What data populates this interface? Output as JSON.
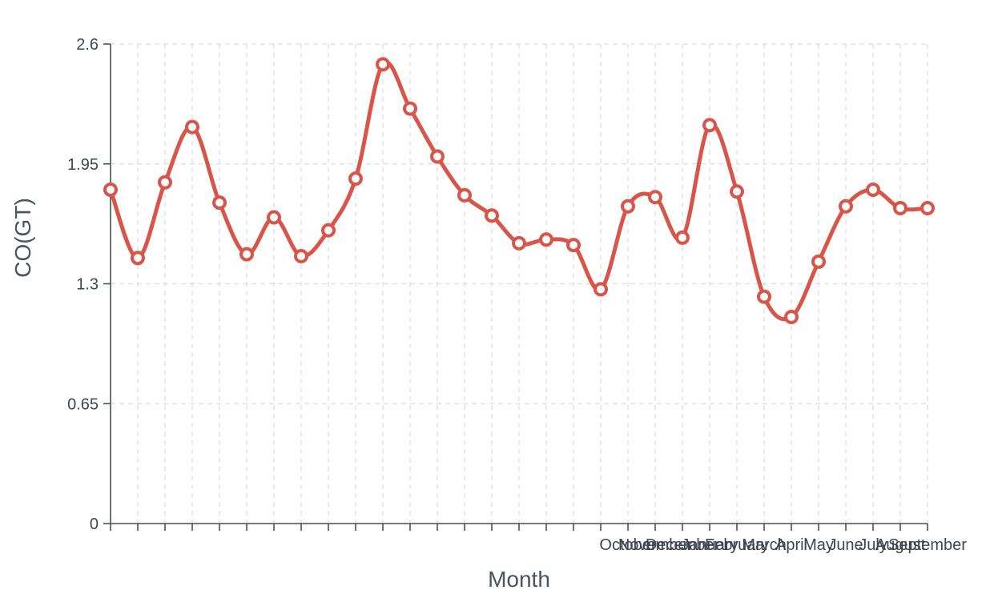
{
  "chart_data": {
    "type": "line",
    "title": "",
    "xlabel": "Month",
    "ylabel": "CO(GT)",
    "ylim": [
      0,
      2.6
    ],
    "yticks": [
      "0",
      "0.65",
      "1.3",
      "1.95",
      "2.6"
    ],
    "grid": true,
    "smooth": true,
    "colors": {
      "series": "#d9554a",
      "axis": "#4a4f5a",
      "grid": "#dddddd",
      "text": "#3f4550"
    },
    "x_tick_labels": [
      "",
      "",
      "",
      "",
      "",
      "",
      "",
      "",
      "",
      "",
      "",
      "",
      "",
      "",
      "",
      "",
      "",
      "",
      "",
      "October",
      "November",
      "December",
      "January",
      "February",
      "March",
      "April",
      "May",
      "June",
      "July",
      "August",
      "September"
    ],
    "series": [
      {
        "values": [
          1.81,
          1.44,
          1.85,
          2.15,
          1.74,
          1.46,
          1.66,
          1.45,
          1.59,
          1.87,
          2.49,
          2.25,
          1.99,
          1.78,
          1.67,
          1.52,
          1.54,
          1.51,
          1.27,
          1.72,
          1.77,
          1.55,
          2.16,
          1.8,
          1.23,
          1.12,
          1.42,
          1.72,
          1.81,
          1.71,
          1.71
        ]
      }
    ]
  }
}
